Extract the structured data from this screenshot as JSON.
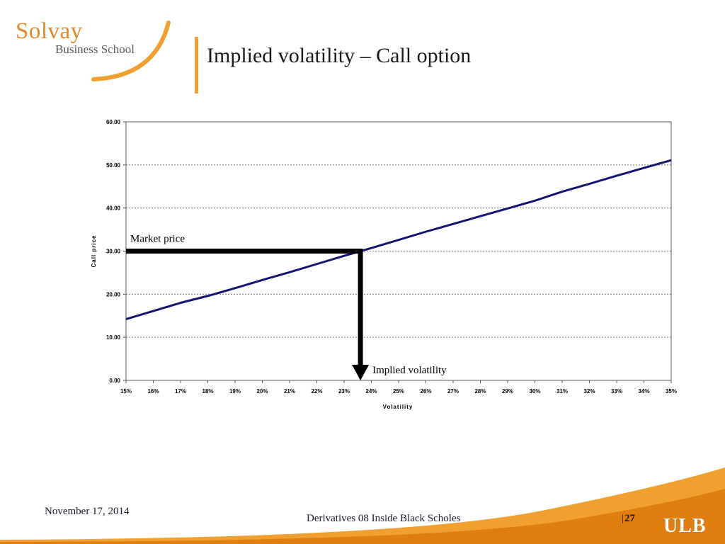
{
  "logo": {
    "name": "Solvay",
    "subtitle": "Business School"
  },
  "slide": {
    "title": "Implied volatility – Call option"
  },
  "footer": {
    "date": "November 17, 2014",
    "course": "Derivatives 08 Inside Black Scholes",
    "page_sep": "|",
    "page": "27",
    "ulb": "ULB"
  },
  "colors": {
    "accent": "#f0a030",
    "series_line": "#141473",
    "annotation": "#000000"
  },
  "chart_data": {
    "type": "line",
    "xlabel": "Volatility",
    "ylabel": "Call price",
    "categories": [
      "15%",
      "16%",
      "17%",
      "18%",
      "19%",
      "20%",
      "21%",
      "22%",
      "23%",
      "24%",
      "25%",
      "26%",
      "27%",
      "28%",
      "29%",
      "30%",
      "31%",
      "32%",
      "33%",
      "34%",
      "35%"
    ],
    "y_ticks": [
      "0.00",
      "10.00",
      "20.00",
      "30.00",
      "40.00",
      "50.00",
      "60.00"
    ],
    "ylim": [
      0,
      60
    ],
    "grid": "horizontal dotted",
    "series": [
      {
        "values": [
          14.2,
          16.1,
          18.0,
          19.6,
          21.4,
          23.3,
          25.1,
          27.0,
          28.9,
          30.7,
          32.6,
          34.5,
          36.3,
          38.1,
          39.9,
          41.7,
          43.8,
          45.6,
          47.5,
          49.3,
          51.1
        ]
      }
    ],
    "annotations": {
      "market_price": {
        "label": "Market price",
        "value": 30.0
      },
      "implied_volatility": {
        "label": "Implied volatility",
        "value": 0.236
      }
    }
  }
}
